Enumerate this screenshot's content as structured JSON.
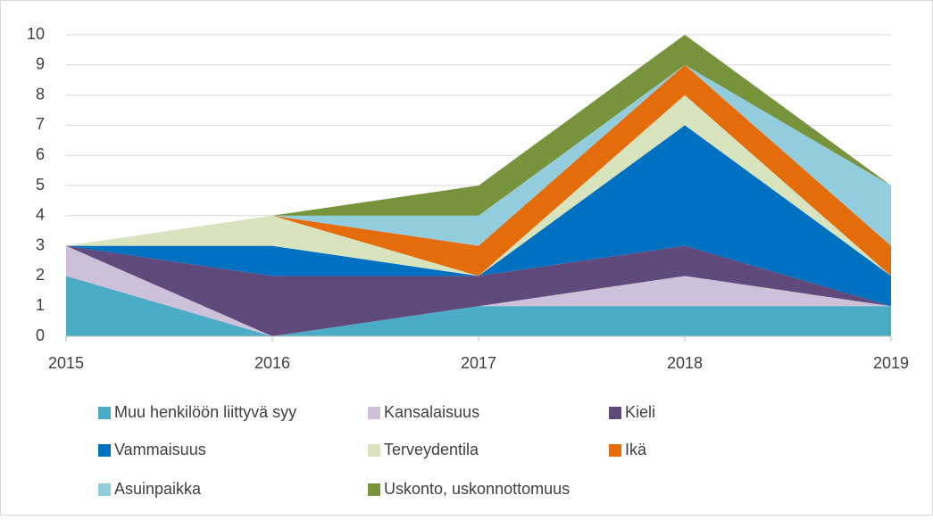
{
  "chart_data": {
    "type": "stacked_area",
    "categories": [
      "2015",
      "2016",
      "2017",
      "2018",
      "2019"
    ],
    "series": [
      {
        "name": "Muu henkilöön liittyvä syy",
        "color": "#4bacc6",
        "values": [
          2,
          0,
          1,
          1,
          1
        ]
      },
      {
        "name": "Kansalaisuus",
        "color": "#ccc0da",
        "values": [
          1,
          0,
          0,
          1,
          0
        ]
      },
      {
        "name": "Kieli",
        "color": "#604a7b",
        "values": [
          0,
          2,
          1,
          1,
          0
        ]
      },
      {
        "name": "Vammaisuus",
        "color": "#0070c0",
        "values": [
          0,
          1,
          0,
          4,
          1
        ]
      },
      {
        "name": "Terveydentila",
        "color": "#d7e4bd",
        "values": [
          0,
          1,
          0,
          1,
          0
        ]
      },
      {
        "name": "Ikä",
        "color": "#e46c0a",
        "values": [
          0,
          0,
          1,
          1,
          1
        ]
      },
      {
        "name": "Asuinpaikka",
        "color": "#93cddd",
        "values": [
          0,
          0,
          1,
          0,
          2
        ]
      },
      {
        "name": "Uskonto, uskonnottomuus",
        "color": "#77933c",
        "values": [
          0,
          0,
          1,
          1,
          0
        ]
      }
    ],
    "ylim": [
      0,
      10
    ],
    "yticks": [
      0,
      1,
      2,
      3,
      4,
      5,
      6,
      7,
      8,
      9,
      10
    ],
    "grid": true
  }
}
